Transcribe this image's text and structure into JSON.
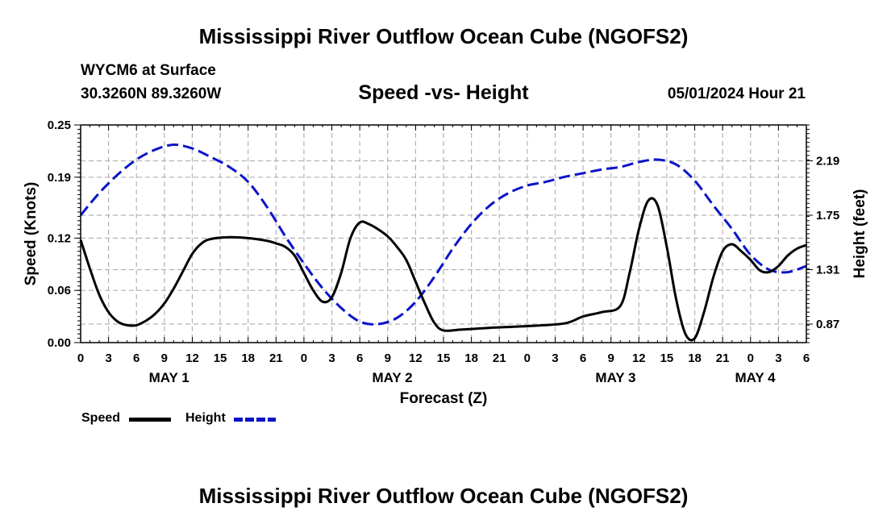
{
  "page": {
    "title": "Mississippi River Outflow Ocean Cube (NGOFS2)",
    "station": "WYCM6 at Surface",
    "coords": "30.3260N  89.3260W",
    "subtitle": "Speed -vs- Height",
    "datetime": "05/01/2024 Hour 21",
    "bottom_title": "Mississippi River Outflow Ocean Cube (NGOFS2)"
  },
  "legend": {
    "speed": "Speed",
    "height": "Height"
  },
  "colors": {
    "speed": "#000000",
    "height": "#0a14c8",
    "grid": "#b4b4b4"
  },
  "chart_data": {
    "type": "line",
    "title": "Speed -vs- Height",
    "xlabel": "Forecast (Z)",
    "ylabel": "Speed (Knots)",
    "y2label": "Height (feet)",
    "x_hours_range": [
      0,
      78
    ],
    "x_tick_step_hours": 3,
    "x_tick_labels": [
      "0",
      "3",
      "6",
      "9",
      "12",
      "15",
      "18",
      "21",
      "0",
      "3",
      "6",
      "9",
      "12",
      "15",
      "18",
      "21",
      "0",
      "3",
      "6",
      "9",
      "12",
      "15",
      "18",
      "21",
      "0",
      "3",
      "6"
    ],
    "date_labels": [
      {
        "label": "MAY 1",
        "hour": 9.5
      },
      {
        "label": "MAY 2",
        "hour": 33.5
      },
      {
        "label": "MAY 3",
        "hour": 57.5
      },
      {
        "label": "MAY 4",
        "hour": 72.5
      }
    ],
    "ylim": [
      0,
      0.25
    ],
    "y_ticks": [
      0.0,
      0.06,
      0.12,
      0.19,
      0.25
    ],
    "y_tick_labels": [
      "0.00",
      "0.06",
      "0.12",
      "0.19",
      "0.25"
    ],
    "y2lim": [
      0.72,
      2.48
    ],
    "y2_ticks": [
      0.87,
      1.31,
      1.75,
      2.19
    ],
    "y2_tick_labels": [
      "0.87",
      "1.31",
      "1.75",
      "2.19"
    ],
    "series": [
      {
        "name": "Speed",
        "style": "solid",
        "x": [
          0,
          1,
          2,
          3,
          4,
          5,
          6,
          7,
          8,
          9,
          10,
          11,
          12,
          13,
          14,
          16,
          18,
          20,
          21,
          22,
          23,
          24,
          25,
          26,
          27,
          28,
          29,
          30,
          31,
          32,
          33,
          34,
          35,
          36,
          37,
          38,
          39,
          41,
          44,
          48,
          52,
          54,
          56,
          58,
          59,
          60,
          61,
          62,
          63,
          64,
          65,
          66,
          67,
          68,
          69,
          70,
          71,
          72,
          73,
          74,
          75,
          76,
          77,
          78
        ],
        "values": [
          0.118,
          0.085,
          0.055,
          0.035,
          0.024,
          0.02,
          0.02,
          0.025,
          0.033,
          0.045,
          0.062,
          0.082,
          0.102,
          0.114,
          0.119,
          0.121,
          0.12,
          0.117,
          0.114,
          0.11,
          0.1,
          0.08,
          0.06,
          0.047,
          0.052,
          0.08,
          0.12,
          0.138,
          0.136,
          0.13,
          0.122,
          0.11,
          0.095,
          0.07,
          0.045,
          0.023,
          0.014,
          0.015,
          0.017,
          0.019,
          0.022,
          0.03,
          0.035,
          0.042,
          0.08,
          0.13,
          0.163,
          0.158,
          0.11,
          0.05,
          0.01,
          0.005,
          0.035,
          0.075,
          0.105,
          0.113,
          0.105,
          0.095,
          0.083,
          0.081,
          0.088,
          0.1,
          0.108,
          0.112
        ]
      },
      {
        "name": "Height",
        "style": "dashed",
        "x": [
          0,
          2,
          4,
          6,
          8,
          10,
          12,
          14,
          16,
          18,
          20,
          22,
          24,
          26,
          28,
          30,
          32,
          34,
          36,
          38,
          40,
          42,
          44,
          46,
          48,
          50,
          52,
          54,
          56,
          58,
          60,
          62,
          64,
          66,
          68,
          70,
          72,
          74,
          76,
          78
        ],
        "values": [
          1.75,
          1.93,
          2.08,
          2.2,
          2.28,
          2.32,
          2.29,
          2.22,
          2.14,
          2.02,
          1.82,
          1.58,
          1.36,
          1.16,
          1.0,
          0.89,
          0.87,
          0.92,
          1.05,
          1.25,
          1.48,
          1.68,
          1.83,
          1.93,
          1.99,
          2.02,
          2.06,
          2.09,
          2.12,
          2.14,
          2.18,
          2.2,
          2.16,
          2.03,
          1.83,
          1.64,
          1.43,
          1.31,
          1.29,
          1.34
        ]
      }
    ]
  }
}
